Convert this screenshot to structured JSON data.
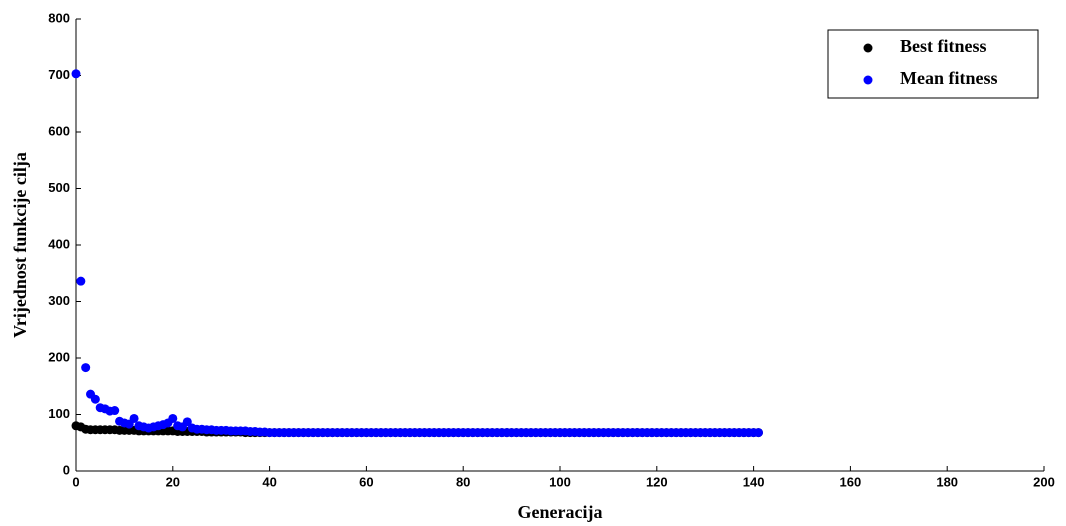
{
  "chart_data": {
    "type": "scatter",
    "xlabel": "Generacija",
    "ylabel": "Vrijednost funkcije cilja",
    "xlim": [
      0,
      200
    ],
    "ylim": [
      0,
      800
    ],
    "xticks": [
      0,
      20,
      40,
      60,
      80,
      100,
      120,
      140,
      160,
      180,
      200
    ],
    "yticks": [
      0,
      100,
      200,
      300,
      400,
      500,
      600,
      700,
      800
    ],
    "legend": "upper-right",
    "x": [
      0,
      1,
      2,
      3,
      4,
      5,
      6,
      7,
      8,
      9,
      10,
      11,
      12,
      13,
      14,
      15,
      16,
      17,
      18,
      19,
      20,
      21,
      22,
      23,
      24,
      25,
      26,
      27,
      28,
      29,
      30,
      31,
      32,
      33,
      34,
      35,
      36,
      37,
      38,
      39,
      40,
      41,
      42,
      43,
      44,
      45,
      46,
      47,
      48,
      49,
      50,
      51,
      52,
      53,
      54,
      55,
      56,
      57,
      58,
      59,
      60,
      61,
      62,
      63,
      64,
      65,
      66,
      67,
      68,
      69,
      70,
      71,
      72,
      73,
      74,
      75,
      76,
      77,
      78,
      79,
      80,
      81,
      82,
      83,
      84,
      85,
      86,
      87,
      88,
      89,
      90,
      91,
      92,
      93,
      94,
      95,
      96,
      97,
      98,
      99,
      100,
      101,
      102,
      103,
      104,
      105,
      106,
      107,
      108,
      109,
      110,
      111,
      112,
      113,
      114,
      115,
      116,
      117,
      118,
      119,
      120,
      121,
      122,
      123,
      124,
      125,
      126,
      127,
      128,
      129,
      130,
      131,
      132,
      133,
      134,
      135,
      136,
      137,
      138,
      139,
      140,
      141
    ],
    "series": [
      {
        "name": "Best fitness",
        "color": "#000000",
        "values": [
          80,
          78,
          74,
          73,
          73,
          73,
          73,
          73,
          73,
          72,
          72,
          72,
          72,
          71,
          71,
          71,
          71,
          71,
          71,
          71,
          71,
          70,
          70,
          70,
          70,
          70,
          70,
          69,
          69,
          69,
          69,
          69,
          69,
          69,
          69,
          68,
          68,
          68,
          68,
          68,
          68,
          68,
          68,
          68,
          68,
          68,
          68,
          68,
          68,
          68,
          68,
          68,
          68,
          68,
          68,
          68,
          68,
          68,
          68,
          68,
          68,
          68,
          68,
          68,
          68,
          68,
          68,
          68,
          68,
          68,
          68,
          68,
          68,
          68,
          68,
          68,
          68,
          68,
          68,
          68,
          68,
          68,
          68,
          68,
          68,
          68,
          68,
          68,
          68,
          68,
          68,
          68,
          68,
          68,
          68,
          68,
          68,
          68,
          68,
          68,
          68,
          68,
          68,
          68,
          68,
          68,
          68,
          68,
          68,
          68,
          68,
          68,
          68,
          68,
          68,
          68,
          68,
          68,
          68,
          68,
          68,
          68,
          68,
          68,
          68,
          68,
          68,
          68,
          68,
          68,
          68,
          68,
          68,
          68,
          68,
          68,
          68,
          68,
          68,
          68,
          68,
          68
        ]
      },
      {
        "name": "Mean fitness",
        "color": "#0000ff",
        "values": [
          703,
          336,
          183,
          136,
          127,
          112,
          110,
          106,
          107,
          88,
          85,
          83,
          93,
          80,
          78,
          76,
          78,
          80,
          82,
          85,
          93,
          80,
          78,
          87,
          76,
          74,
          74,
          73,
          73,
          72,
          72,
          72,
          71,
          71,
          71,
          71,
          70,
          70,
          69,
          69,
          68,
          68,
          68,
          68,
          68,
          68,
          68,
          68,
          68,
          68,
          68,
          68,
          68,
          68,
          68,
          68,
          68,
          68,
          68,
          68,
          68,
          68,
          68,
          68,
          68,
          68,
          68,
          68,
          68,
          68,
          68,
          68,
          68,
          68,
          68,
          68,
          68,
          68,
          68,
          68,
          68,
          68,
          68,
          68,
          68,
          68,
          68,
          68,
          68,
          68,
          68,
          68,
          68,
          68,
          68,
          68,
          68,
          68,
          68,
          68,
          68,
          68,
          68,
          68,
          68,
          68,
          68,
          68,
          68,
          68,
          68,
          68,
          68,
          68,
          68,
          68,
          68,
          68,
          68,
          68,
          68,
          68,
          68,
          68,
          68,
          68,
          68,
          68,
          68,
          68,
          68,
          68,
          68,
          68,
          68,
          68,
          68,
          68,
          68,
          68,
          68,
          68
        ]
      }
    ]
  }
}
